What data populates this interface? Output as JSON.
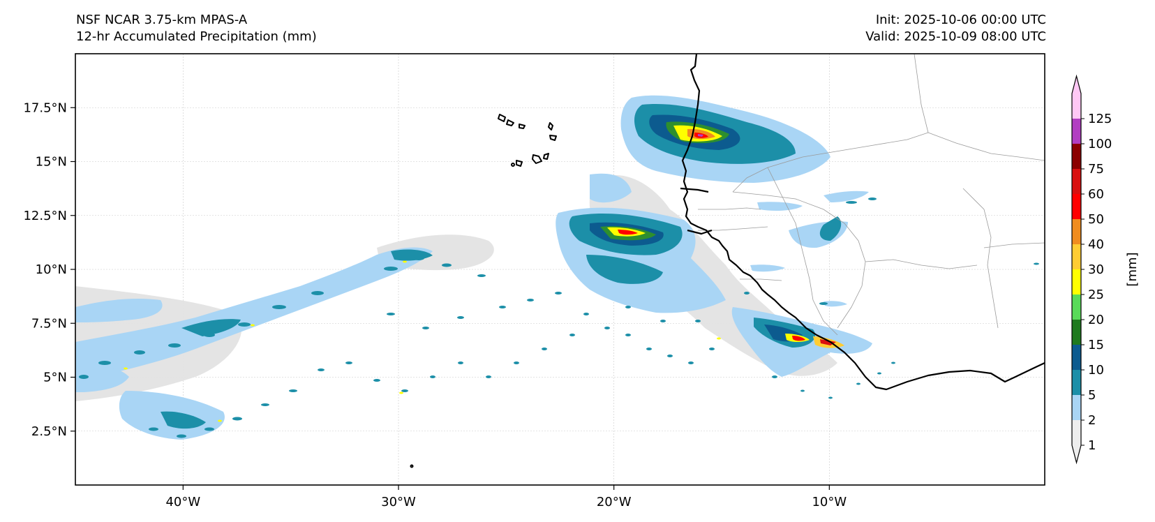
{
  "header": {
    "model": "NSF NCAR 3.75-km MPAS-A",
    "field": "12-hr Accumulated Precipitation (mm)",
    "init": "Init: 2025-10-06 00:00 UTC",
    "valid": "Valid: 2025-10-09 08:00 UTC"
  },
  "map": {
    "lon_range": [
      -45,
      0
    ],
    "lat_range": [
      0,
      20
    ],
    "lon_ticks": [
      {
        "value": -40,
        "label": "40°W"
      },
      {
        "value": -30,
        "label": "30°W"
      },
      {
        "value": -20,
        "label": "20°W"
      },
      {
        "value": -10,
        "label": "10°W"
      }
    ],
    "lat_ticks": [
      {
        "value": 17.5,
        "label": "17.5°N"
      },
      {
        "value": 15,
        "label": "15°N"
      },
      {
        "value": 12.5,
        "label": "12.5°N"
      },
      {
        "value": 10,
        "label": "10°N"
      },
      {
        "value": 7.5,
        "label": "7.5°N"
      },
      {
        "value": 5,
        "label": "5°N"
      },
      {
        "value": 2.5,
        "label": "2.5°N"
      }
    ],
    "gridlines": true,
    "coastline_color": "#000000",
    "border_color": "#9a9a9a"
  },
  "colorbar": {
    "unit_label": "[mm]",
    "levels": [
      "1",
      "2",
      "5",
      "10",
      "15",
      "20",
      "25",
      "30",
      "40",
      "50",
      "60",
      "75",
      "100",
      "125"
    ],
    "colors": [
      "#eeeeee",
      "#a9d5f5",
      "#1c8fa8",
      "#0c5b8f",
      "#1f7a1f",
      "#59db59",
      "#ffff00",
      "#ffcc33",
      "#f08c1f",
      "#ff0000",
      "#d91010",
      "#8b0000",
      "#b23ec2",
      "#ffc8f5"
    ]
  }
}
